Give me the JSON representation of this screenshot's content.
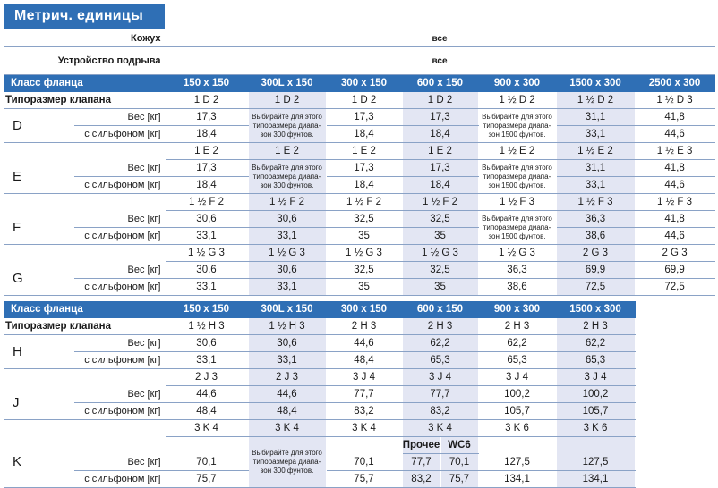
{
  "title": "Метрич. единицы",
  "top": {
    "housing_label": "Кожух",
    "housing_value": "все",
    "lift_label": "Устройство подрыва",
    "lift_value": "все"
  },
  "table1": {
    "flange_label": "Класс фланца",
    "columns": [
      "150 x 150",
      "300L x 150",
      "300 x 150",
      "600 x 150",
      "900 x 300",
      "1500 x 300",
      "2500 x 300"
    ],
    "size_label": "Типоразмер клапана",
    "weight_label": "Вес [кг]",
    "bellows_label": "с сильфоном [кг]",
    "note_300": "Выбирайте для этого типоразмера диапа-зон 300 фунтов.",
    "note_1500": "Выбирайте для этого типоразмера диапа-зон 1500 фунтов.",
    "rows": [
      {
        "letter": "D",
        "sizes": [
          "1 D 2",
          "1 D 2",
          "1 D 2",
          "1 D 2",
          "1 ½ D 2",
          "1 ½ D 2",
          "1 ½ D 3"
        ],
        "weights": [
          "17,3",
          "",
          "17,3",
          "17,3",
          "",
          "31,1",
          "41,8"
        ],
        "bellows": [
          "18,4",
          "",
          "18,4",
          "18,4",
          "",
          "33,1",
          "44,6"
        ]
      },
      {
        "letter": "E",
        "sizes": [
          "1 E 2",
          "1 E 2",
          "1 E 2",
          "1 E 2",
          "1 ½ E 2",
          "1 ½ E 2",
          "1 ½ E 3"
        ],
        "weights": [
          "17,3",
          "",
          "17,3",
          "17,3",
          "",
          "31,1",
          "41,8"
        ],
        "bellows": [
          "18,4",
          "",
          "18,4",
          "18,4",
          "",
          "33,1",
          "44,6"
        ]
      },
      {
        "letter": "F",
        "sizes": [
          "1 ½ F 2",
          "1 ½ F 2",
          "1 ½ F 2",
          "1 ½ F 2",
          "1 ½ F 3",
          "1 ½ F 3",
          "1 ½ F 3"
        ],
        "weights": [
          "30,6",
          "30,6",
          "32,5",
          "32,5",
          "",
          "36,3",
          "41,8"
        ],
        "bellows": [
          "33,1",
          "33,1",
          "35",
          "35",
          "",
          "38,6",
          "44,6"
        ]
      },
      {
        "letter": "G",
        "sizes": [
          "1 ½ G 3",
          "1 ½ G 3",
          "1 ½ G 3",
          "1 ½ G 3",
          "1 ½ G 3",
          "2 G 3",
          "2 G 3"
        ],
        "weights": [
          "30,6",
          "30,6",
          "32,5",
          "32,5",
          "36,3",
          "69,9",
          "69,9"
        ],
        "bellows": [
          "33,1",
          "33,1",
          "35",
          "35",
          "38,6",
          "72,5",
          "72,5"
        ]
      }
    ]
  },
  "table2": {
    "flange_label": "Класс фланца",
    "columns": [
      "150 x 150",
      "300L x 150",
      "300 x 150",
      "600 x 150",
      "900 x 300",
      "1500 x 300"
    ],
    "size_label": "Типоразмер клапана",
    "rows": [
      {
        "letter": "H",
        "sizes": [
          "1 ½ H 3",
          "1 ½ H 3",
          "2 H 3",
          "2 H 3",
          "2 H 3",
          "2 H 3"
        ],
        "weights": [
          "30,6",
          "30,6",
          "44,6",
          "62,2",
          "62,2",
          "62,2"
        ],
        "bellows": [
          "33,1",
          "33,1",
          "48,4",
          "65,3",
          "65,3",
          "65,3"
        ]
      },
      {
        "letter": "J",
        "sizes": [
          "2 J 3",
          "2 J 3",
          "3 J 4",
          "3 J 4",
          "3 J 4",
          "3 J 4"
        ],
        "weights": [
          "44,6",
          "44,6",
          "77,7",
          "77,7",
          "100,2",
          "100,2"
        ],
        "bellows": [
          "48,4",
          "48,4",
          "83,2",
          "83,2",
          "105,7",
          "105,7"
        ]
      },
      {
        "letter": "K",
        "sizes": [
          "3 K 4",
          "3 K 4",
          "3 K 4",
          "3 K 4",
          "3 K 6",
          "3 K 6"
        ],
        "weights": [
          "70,1",
          "",
          "70,1",
          "",
          "127,5",
          "127,5"
        ],
        "bellows": [
          "75,7",
          "",
          "75,7",
          "",
          "134,1",
          "134,1"
        ],
        "sub_headers": [
          "Прочее",
          "WC6"
        ],
        "sub_weights": [
          "77,7",
          "70,1"
        ],
        "sub_bellows": [
          "83,2",
          "75,7"
        ]
      }
    ]
  }
}
